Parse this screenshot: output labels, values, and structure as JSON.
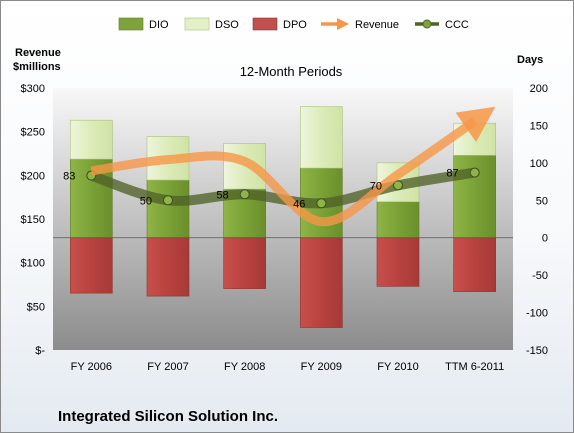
{
  "chart_data": {
    "type": "bar",
    "title": "",
    "subtitle": "12-Month Periods",
    "company": "Integrated Silicon Solution Inc.",
    "left_axis": {
      "title_line1": "Revenue",
      "title_line2": "$millions",
      "ylim": [
        0,
        300
      ],
      "ticks": [
        0,
        50,
        100,
        150,
        200,
        250,
        300
      ],
      "tick_labels": [
        "$-",
        "$50",
        "$100",
        "$150",
        "$200",
        "$250",
        "$300"
      ]
    },
    "right_axis": {
      "title": "Days",
      "ylim": [
        -150,
        200
      ],
      "ticks": [
        -150,
        -100,
        -50,
        0,
        50,
        100,
        150,
        200
      ],
      "tick_labels": [
        "-150",
        "-100",
        "-50",
        "0",
        "50",
        "100",
        "150",
        "200"
      ]
    },
    "categories": [
      "FY 2006",
      "FY 2007",
      "FY 2008",
      "FY 2009",
      "FY 2010",
      "TTM 6-2011"
    ],
    "series": [
      {
        "name": "DIO",
        "axis": "right",
        "stack": "positive",
        "values": [
          105,
          77,
          65,
          93,
          48,
          110
        ]
      },
      {
        "name": "DSO",
        "axis": "right",
        "stack": "positive",
        "values": [
          52,
          58,
          61,
          82,
          52,
          43
        ]
      },
      {
        "name": "DPO",
        "axis": "right",
        "stack": "negative",
        "values": [
          -74,
          -78,
          -68,
          -120,
          -65,
          -72
        ]
      },
      {
        "name": "Revenue",
        "axis": "left",
        "type": "line",
        "values": [
          205,
          218,
          216,
          147,
          201,
          262
        ]
      },
      {
        "name": "CCC",
        "axis": "right",
        "type": "line",
        "values": [
          83,
          50,
          58,
          46,
          70,
          87
        ]
      }
    ],
    "ccc_labels": [
      "83",
      "50",
      "58",
      "46",
      "70",
      "87"
    ],
    "legend": [
      {
        "name": "DIO",
        "color": "#7ea33b"
      },
      {
        "name": "DSO",
        "color": "#e3efc8"
      },
      {
        "name": "DPO",
        "color": "#c0504d"
      },
      {
        "name": "Revenue",
        "color": "#f79646"
      },
      {
        "name": "CCC",
        "color": "#4f6228"
      }
    ],
    "legend_position": "top",
    "grid": false
  }
}
